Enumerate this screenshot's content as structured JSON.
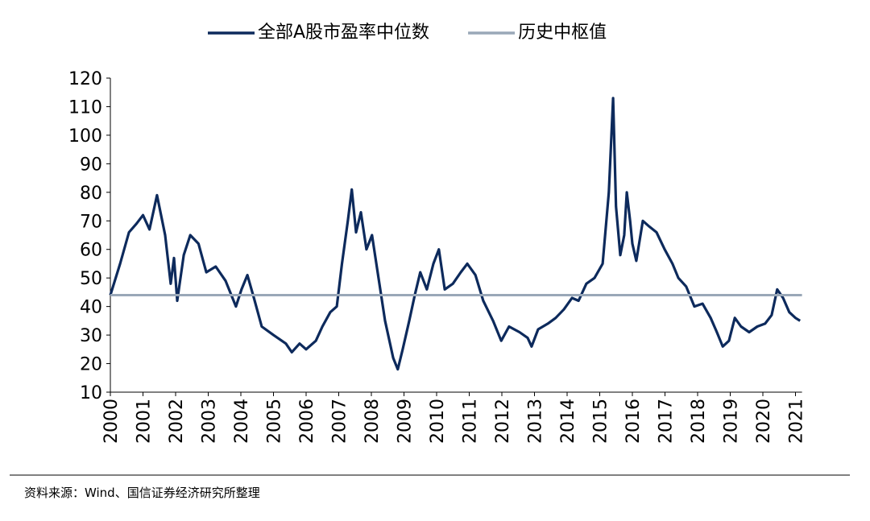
{
  "chart_data": {
    "type": "line",
    "legend": "top",
    "x": [
      2000.0,
      2000.3,
      2000.57,
      2000.8,
      2001.0,
      2001.2,
      2001.43,
      2001.68,
      2001.85,
      2001.95,
      2002.05,
      2002.25,
      2002.45,
      2002.7,
      2002.94,
      2003.23,
      2003.53,
      2003.85,
      2004.02,
      2004.2,
      2004.4,
      2004.64,
      2005.0,
      2005.38,
      2005.56,
      2005.8,
      2006.0,
      2006.3,
      2006.5,
      2006.74,
      2006.94,
      2007.1,
      2007.28,
      2007.4,
      2007.53,
      2007.68,
      2007.85,
      2008.02,
      2008.22,
      2008.42,
      2008.67,
      2008.81,
      2008.96,
      2009.16,
      2009.33,
      2009.5,
      2009.7,
      2009.9,
      2010.07,
      2010.25,
      2010.5,
      2010.74,
      2010.94,
      2011.19,
      2011.43,
      2011.73,
      2011.98,
      2012.22,
      2012.54,
      2012.79,
      2012.91,
      2013.11,
      2013.41,
      2013.65,
      2013.9,
      2014.15,
      2014.35,
      2014.59,
      2014.84,
      2015.09,
      2015.28,
      2015.41,
      2015.5,
      2015.63,
      2015.75,
      2015.83,
      2015.93,
      2016.0,
      2016.12,
      2016.32,
      2016.52,
      2016.74,
      2016.99,
      2017.23,
      2017.41,
      2017.65,
      2017.9,
      2018.15,
      2018.4,
      2018.59,
      2018.77,
      2018.96,
      2019.14,
      2019.33,
      2019.58,
      2019.83,
      2020.07,
      2020.27,
      2020.44,
      2020.62,
      2020.81,
      2021.0,
      2021.14
    ],
    "series": [
      {
        "name": "全部A股市盈率中位数",
        "color": "#0d2a5c",
        "values": [
          44,
          55,
          66,
          69,
          72,
          67,
          79,
          65,
          48,
          57,
          42,
          58,
          65,
          62,
          52,
          54,
          49,
          40,
          46,
          51,
          43,
          33,
          30,
          27,
          24,
          27,
          25,
          28,
          33,
          38,
          40,
          55,
          70,
          81,
          66,
          73,
          60,
          65,
          50,
          35,
          22,
          18,
          25,
          35,
          44,
          52,
          46,
          55,
          60,
          46,
          48,
          52,
          55,
          51,
          42,
          35,
          28,
          33,
          31,
          29,
          26,
          32,
          34,
          36,
          39,
          43,
          42,
          48,
          50,
          55,
          80,
          113,
          75,
          58,
          65,
          80,
          70,
          62,
          56,
          70,
          68,
          66,
          60,
          55,
          50,
          47,
          40,
          41,
          36,
          31,
          26,
          28,
          36,
          33,
          31,
          33,
          34,
          37,
          46,
          43,
          38,
          36,
          35
        ]
      }
    ],
    "reference_line": {
      "name": "历史中枢值",
      "value": 44,
      "color": "#9aa8b8"
    },
    "xlim": [
      2000,
      2021.2
    ],
    "xticks": [
      2000,
      2001,
      2002,
      2003,
      2004,
      2005,
      2006,
      2007,
      2008,
      2009,
      2010,
      2011,
      2012,
      2013,
      2014,
      2015,
      2016,
      2017,
      2018,
      2019,
      2020,
      2021
    ],
    "ylim": [
      10,
      120
    ],
    "yticks": [
      10,
      20,
      30,
      40,
      50,
      60,
      70,
      80,
      90,
      100,
      110,
      120
    ],
    "source": "资料来源：Wind、国信证券经济研究所整理"
  }
}
